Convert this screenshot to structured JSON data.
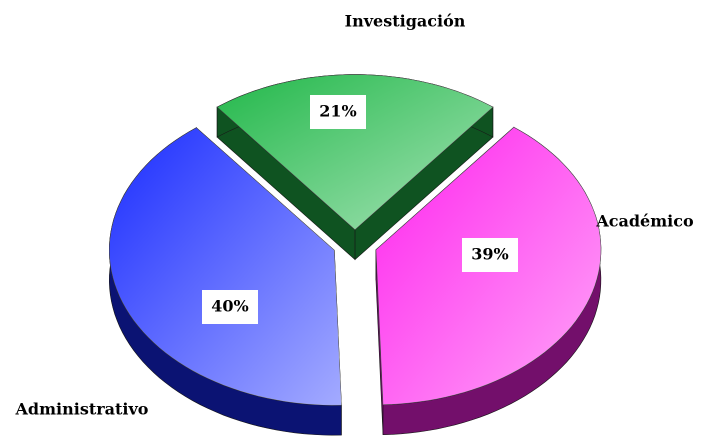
{
  "chart_data": {
    "type": "pie",
    "categories": [
      "Investigación",
      "Académico",
      "Administrativo"
    ],
    "values": [
      21,
      39,
      40
    ],
    "value_labels": [
      "21%",
      "39%",
      "40%"
    ],
    "colors": [
      "#22b84a",
      "#ff22ee",
      "#1a2cff"
    ]
  }
}
